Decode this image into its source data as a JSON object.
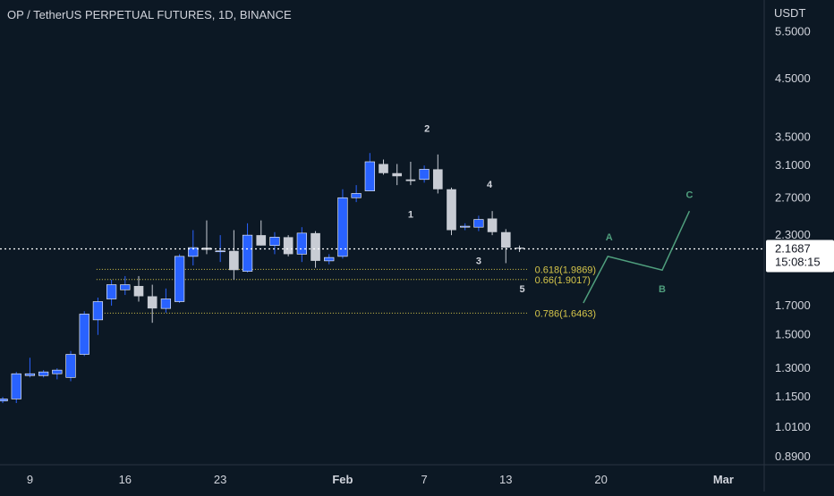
{
  "header": {
    "title": "OP / TetherUS PERPETUAL FUTURES, 1D, BINANCE"
  },
  "axis": {
    "currency": "USDT",
    "price_ticks": [
      "5.5000",
      "4.5000",
      "3.5000",
      "3.1000",
      "2.7000",
      "2.3000",
      "1.7000",
      "1.5000",
      "1.3000",
      "1.1500",
      "1.0100",
      "0.8900"
    ],
    "date_ticks": [
      {
        "label": "9",
        "day": 9
      },
      {
        "label": "16",
        "day": 16
      },
      {
        "label": "23",
        "day": 23
      },
      {
        "label": "Feb",
        "day": 32
      },
      {
        "label": "7",
        "day": 38
      },
      {
        "label": "13",
        "day": 44
      },
      {
        "label": "20",
        "day": 51
      },
      {
        "label": "Mar",
        "day": 60
      }
    ]
  },
  "last_price": {
    "value": "2.1687",
    "countdown": "15:08:15"
  },
  "fib_levels": [
    {
      "label": "0.618(1.9869)",
      "price": 1.9869
    },
    {
      "label": "0.66(1.9017)",
      "price": 1.9017
    },
    {
      "label": "0.786(1.6463)",
      "price": 1.6463
    }
  ],
  "wave_labels": [
    {
      "text": "1",
      "day": 37,
      "price": 2.48
    },
    {
      "text": "2",
      "day": 38.2,
      "price": 3.58
    },
    {
      "text": "3",
      "day": 42,
      "price": 2.03
    },
    {
      "text": "4",
      "day": 42.8,
      "price": 2.82
    },
    {
      "text": "5",
      "day": 45.2,
      "price": 1.8
    }
  ],
  "projection": {
    "points": [
      {
        "day": 49.7,
        "price": 1.72
      },
      {
        "day": 51.5,
        "price": 2.1
      },
      {
        "day": 55.5,
        "price": 1.98
      },
      {
        "day": 57.5,
        "price": 2.55
      }
    ],
    "labels": [
      {
        "text": "A",
        "day": 51.6,
        "price": 2.25
      },
      {
        "text": "B",
        "day": 55.5,
        "price": 1.8
      },
      {
        "text": "C",
        "day": 57.5,
        "price": 2.7
      }
    ]
  },
  "colors": {
    "background": "#0c1824",
    "up": "#2962ff",
    "down": "#c8ccd4",
    "fib": "#d6c64a",
    "projection": "#4f9e7d",
    "text": "#d1d4dc",
    "last_price_line": "#ffffff"
  },
  "chart_data": {
    "type": "candlestick",
    "title": "OP / TetherUS PERPETUAL FUTURES, 1D, BINANCE",
    "y_scale": "log",
    "ylim": [
      0.86,
      6.3
    ],
    "xlim_days": [
      6.8,
      63
    ],
    "candles": [
      {
        "day": 7,
        "open": 1.13,
        "high": 1.15,
        "low": 1.12,
        "close": 1.14
      },
      {
        "day": 8,
        "open": 1.14,
        "high": 1.28,
        "low": 1.12,
        "close": 1.27
      },
      {
        "day": 9,
        "open": 1.26,
        "high": 1.36,
        "low": 1.25,
        "close": 1.27
      },
      {
        "day": 10,
        "open": 1.26,
        "high": 1.29,
        "low": 1.25,
        "close": 1.28
      },
      {
        "day": 11,
        "open": 1.27,
        "high": 1.3,
        "low": 1.24,
        "close": 1.29
      },
      {
        "day": 12,
        "open": 1.25,
        "high": 1.4,
        "low": 1.23,
        "close": 1.38
      },
      {
        "day": 13,
        "open": 1.38,
        "high": 1.66,
        "low": 1.37,
        "close": 1.64
      },
      {
        "day": 14,
        "open": 1.6,
        "high": 1.76,
        "low": 1.5,
        "close": 1.73
      },
      {
        "day": 15,
        "open": 1.75,
        "high": 1.9,
        "low": 1.7,
        "close": 1.86
      },
      {
        "day": 16,
        "open": 1.82,
        "high": 1.93,
        "low": 1.78,
        "close": 1.86
      },
      {
        "day": 17,
        "open": 1.85,
        "high": 1.93,
        "low": 1.73,
        "close": 1.77
      },
      {
        "day": 18,
        "open": 1.77,
        "high": 1.86,
        "low": 1.58,
        "close": 1.68
      },
      {
        "day": 19,
        "open": 1.68,
        "high": 1.83,
        "low": 1.65,
        "close": 1.75
      },
      {
        "day": 20,
        "open": 1.73,
        "high": 2.12,
        "low": 1.72,
        "close": 2.1
      },
      {
        "day": 21,
        "open": 2.1,
        "high": 2.35,
        "low": 2.02,
        "close": 2.18
      },
      {
        "day": 22,
        "open": 2.18,
        "high": 2.45,
        "low": 2.12,
        "close": 2.16
      },
      {
        "day": 23,
        "open": 2.15,
        "high": 2.3,
        "low": 2.05,
        "close": 2.15
      },
      {
        "day": 24,
        "open": 2.15,
        "high": 2.35,
        "low": 1.9,
        "close": 1.98
      },
      {
        "day": 25,
        "open": 1.97,
        "high": 2.42,
        "low": 1.96,
        "close": 2.3
      },
      {
        "day": 26,
        "open": 2.3,
        "high": 2.45,
        "low": 2.2,
        "close": 2.2
      },
      {
        "day": 27,
        "open": 2.2,
        "high": 2.33,
        "low": 2.12,
        "close": 2.28
      },
      {
        "day": 28,
        "open": 2.28,
        "high": 2.3,
        "low": 2.1,
        "close": 2.12
      },
      {
        "day": 29,
        "open": 2.12,
        "high": 2.38,
        "low": 2.05,
        "close": 2.32
      },
      {
        "day": 30,
        "open": 2.32,
        "high": 2.34,
        "low": 2.0,
        "close": 2.06
      },
      {
        "day": 31,
        "open": 2.06,
        "high": 2.12,
        "low": 2.03,
        "close": 2.09
      },
      {
        "day": 32,
        "open": 2.1,
        "high": 2.8,
        "low": 2.08,
        "close": 2.7
      },
      {
        "day": 33,
        "open": 2.7,
        "high": 2.85,
        "low": 2.65,
        "close": 2.75
      },
      {
        "day": 34,
        "open": 2.78,
        "high": 3.27,
        "low": 2.78,
        "close": 3.15
      },
      {
        "day": 35,
        "open": 3.12,
        "high": 3.18,
        "low": 2.98,
        "close": 3.0
      },
      {
        "day": 36,
        "open": 3.0,
        "high": 3.12,
        "low": 2.85,
        "close": 2.96
      },
      {
        "day": 37,
        "open": 2.92,
        "high": 3.15,
        "low": 2.85,
        "close": 2.9
      },
      {
        "day": 38,
        "open": 2.92,
        "high": 3.1,
        "low": 2.88,
        "close": 3.05
      },
      {
        "day": 39,
        "open": 3.05,
        "high": 3.25,
        "low": 2.75,
        "close": 2.8
      },
      {
        "day": 40,
        "open": 2.8,
        "high": 2.82,
        "low": 2.3,
        "close": 2.35
      },
      {
        "day": 41,
        "open": 2.38,
        "high": 2.42,
        "low": 2.35,
        "close": 2.39
      },
      {
        "day": 42,
        "open": 2.38,
        "high": 2.5,
        "low": 2.34,
        "close": 2.46
      },
      {
        "day": 43,
        "open": 2.47,
        "high": 2.55,
        "low": 2.3,
        "close": 2.33
      },
      {
        "day": 44,
        "open": 2.33,
        "high": 2.36,
        "low": 2.04,
        "close": 2.18
      },
      {
        "day": 45,
        "open": 2.18,
        "high": 2.2,
        "low": 2.14,
        "close": 2.17
      }
    ]
  }
}
